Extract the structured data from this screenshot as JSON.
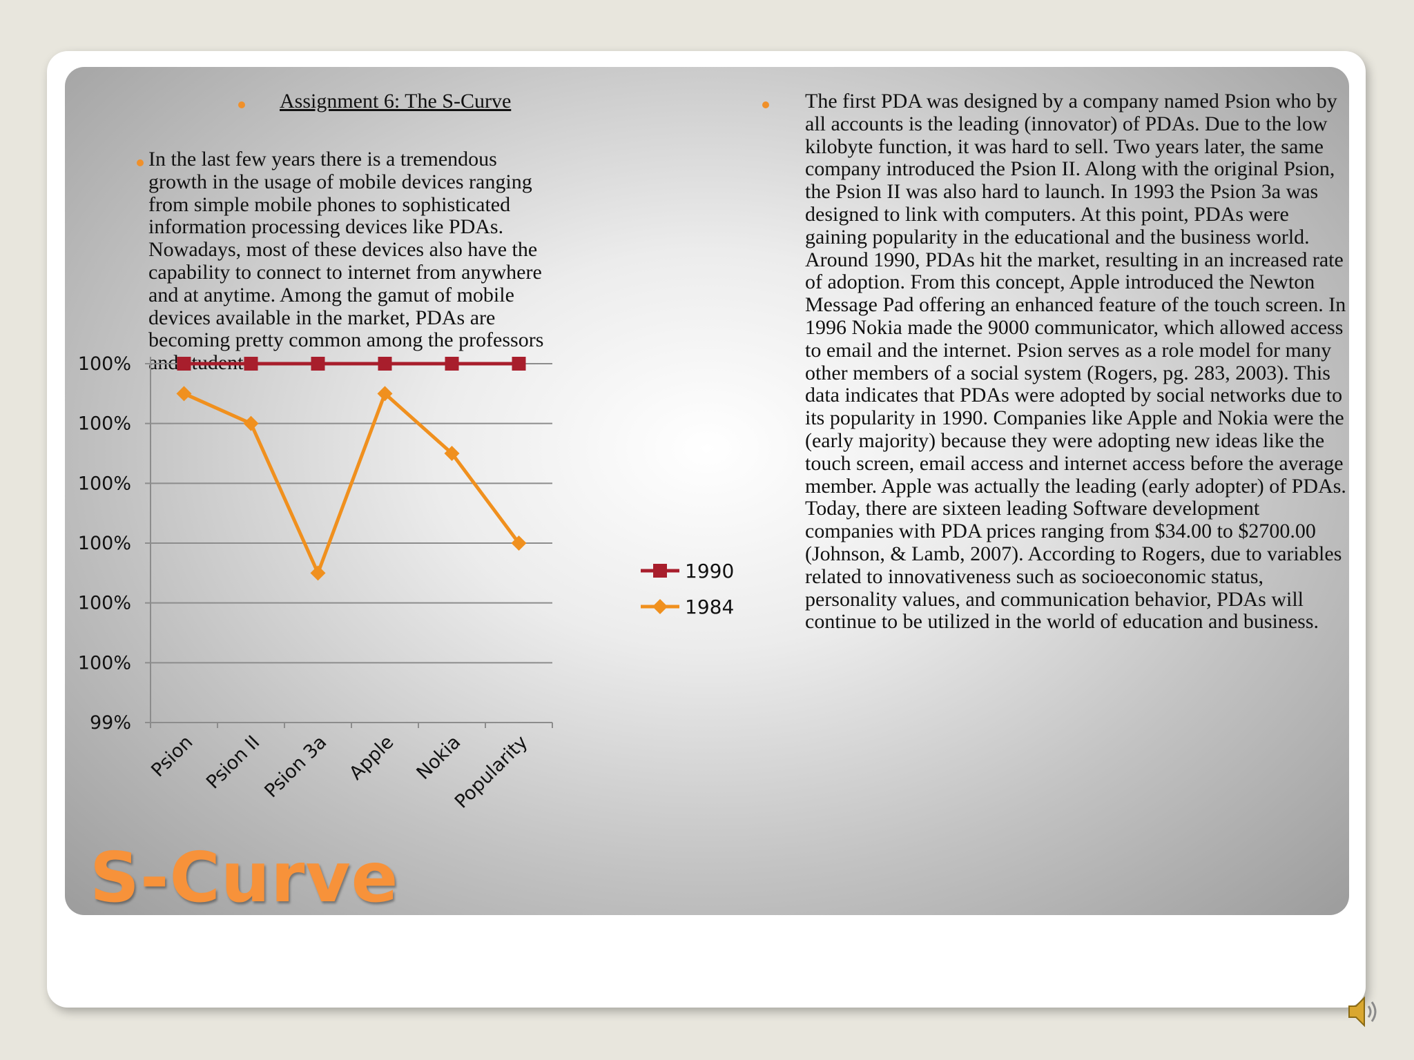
{
  "slide": {
    "title": "S-Curve",
    "subtitle": "Assignment 6: The S-Curve",
    "left_paragraph": "In the last few years there is a tremendous growth in the usage of mobile devices ranging from simple mobile phones to sophisticated information processing devices like PDAs. Nowadays, most of these devices also have the capability to connect to internet from anywhere and at anytime. Among the gamut of mobile devices available in the market, PDAs are becoming pretty common among the professors and students.",
    "right_paragraph": "The first PDA was designed by a company named Psion who by all accounts is the leading (innovator) of PDAs.  Due to the low kilobyte function, it was hard to sell.  Two years later, the same company introduced the Psion II.  Along with the original Psion, the Psion II was also hard to launch.  In 1993 the Psion 3a was designed to link with computers.  At this point, PDAs were gaining popularity in the educational and the business world.  Around 1990, PDAs hit the market, resulting in an increased rate of adoption.  From this concept, Apple introduced the Newton Message Pad offering an enhanced feature of the touch screen.  In 1996 Nokia made the 9000 communicator, which allowed access to email and the internet.  Psion serves as a role model for many other members of a social system (Rogers, pg. 283, 2003).  This data indicates that PDAs were adopted by social networks due to its popularity in 1990.  Companies like Apple and Nokia were the (early majority) because they were adopting new ideas like the touch screen, email access and internet access before the average member.  Apple was actually the leading (early adopter) of PDAs.  Today, there are sixteen leading Software development companies with PDA prices ranging from $34.00 to $2700.00 (Johnson, & Lamb, 2007).  According to Rogers, due to variables related to innovativeness such as socioeconomic status, personality values, and communication behavior, PDAs will continue to be utilized in the world of education and business.",
    "speaker_icon": "speaker-icon"
  },
  "colors": {
    "accent": "#f7923a",
    "series_1990": "#a81e2c",
    "series_1984": "#f0901e"
  },
  "chart_data": {
    "type": "line",
    "categories": [
      "Psion",
      "Psion II",
      "Psion 3a",
      "Apple",
      "Nokia",
      "Popularity"
    ],
    "y_tick_labels": [
      "99%",
      "100%",
      "100%",
      "100%",
      "100%",
      "100%",
      "100%"
    ],
    "ylim": [
      0,
      6
    ],
    "grid": true,
    "legend_position": "right",
    "series": [
      {
        "name": "1990",
        "marker": "square",
        "values": [
          6,
          6,
          6,
          6,
          6,
          6
        ]
      },
      {
        "name": "1984",
        "marker": "diamond",
        "values": [
          5.5,
          5,
          2.5,
          5.5,
          4.5,
          3
        ]
      }
    ]
  }
}
